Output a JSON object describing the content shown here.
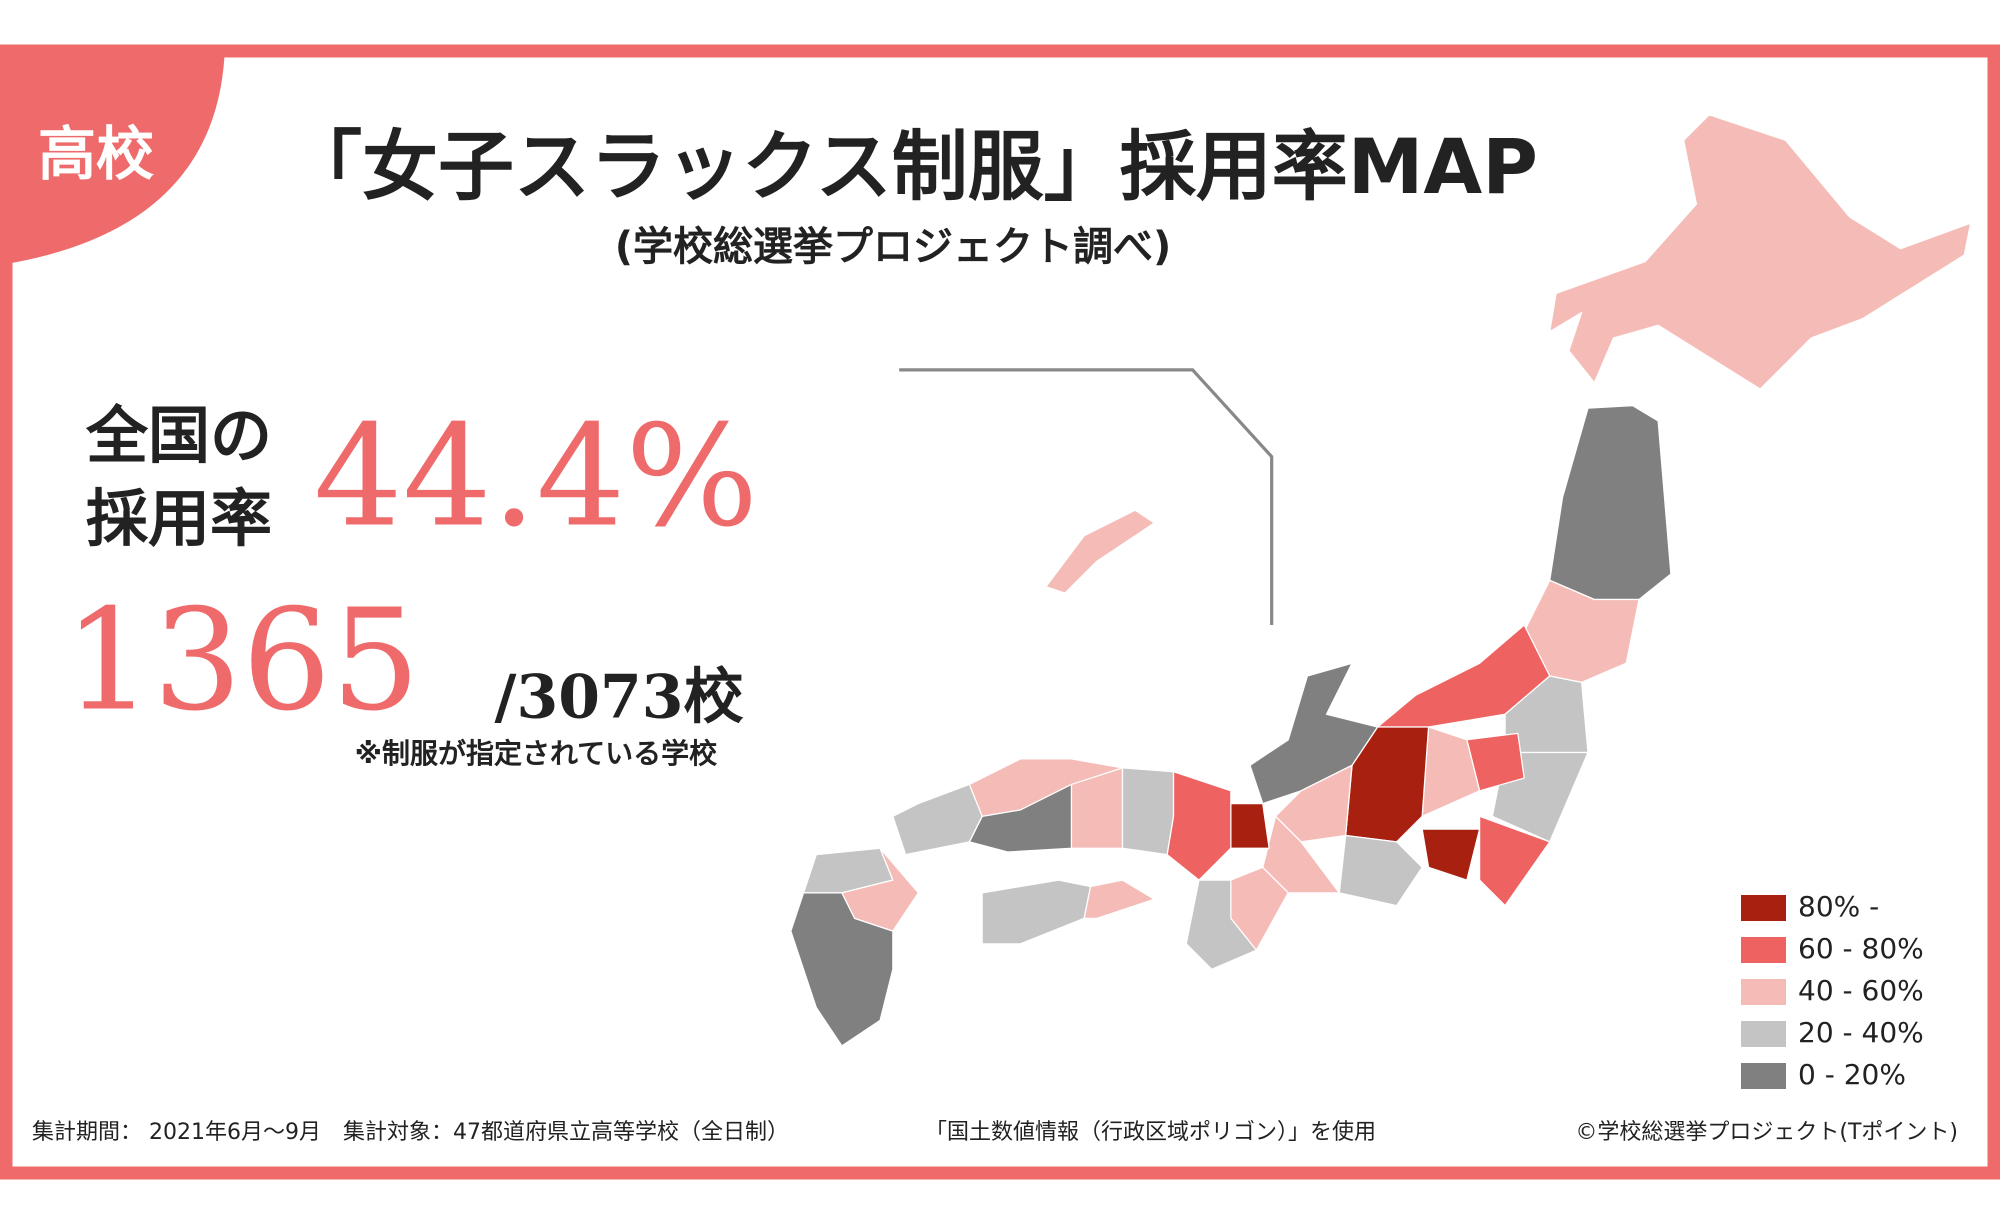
{
  "header": {
    "badge": "高校",
    "title": "「女子スラックス制服」採用率MAP",
    "subtitle": "(学校総選挙プロジェクト調べ)"
  },
  "stats": {
    "label_line1": "全国の",
    "label_line2": "採用率",
    "rate": "44.4%",
    "count": "1365",
    "total": "/3073校",
    "note": "※制服が指定されている学校"
  },
  "legend": [
    {
      "label": "80% -",
      "color": "#a8200f"
    },
    {
      "label": "60 - 80%",
      "color": "#ef6262"
    },
    {
      "label": "40 - 60%",
      "color": "#f5bbb6"
    },
    {
      "label": "20 - 40%",
      "color": "#c4c4c4"
    },
    {
      "label": "0 - 20%",
      "color": "#808080"
    }
  ],
  "footer": {
    "period": "集計期間： 2021年6月〜9月　集計対象：47都道府県立高等学校（全日制）",
    "source": "「国土数値情報（行政区域ポリゴン）」を使用",
    "credit": "©学校総選挙プロジェクト(Tポイント)"
  }
}
